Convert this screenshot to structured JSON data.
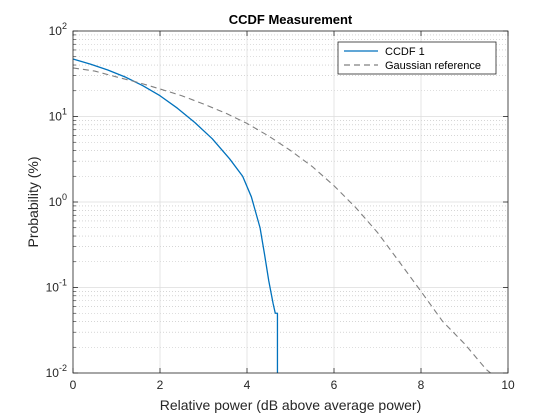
{
  "chart_data": {
    "type": "line",
    "title": "CCDF Measurement",
    "xlabel": "Relative power (dB above average power)",
    "ylabel": "Probability (%)",
    "xlim": [
      0,
      10
    ],
    "ylim": [
      0.01,
      100
    ],
    "yscale": "log",
    "grid": true,
    "minor_grid": true,
    "legend_position": "top-right",
    "x_ticks": [
      "0",
      "2",
      "4",
      "6",
      "8",
      "10"
    ],
    "y_ticks": [
      {
        "value": 0.01,
        "base": "10",
        "exp": "-2"
      },
      {
        "value": 0.1,
        "base": "10",
        "exp": "-1"
      },
      {
        "value": 1,
        "base": "10",
        "exp": "0"
      },
      {
        "value": 10,
        "base": "10",
        "exp": "1"
      },
      {
        "value": 100,
        "base": "10",
        "exp": "2"
      }
    ],
    "series": [
      {
        "name": "CCDF 1",
        "color": "#0072BD",
        "style": "solid",
        "x": [
          0,
          0.4,
          0.8,
          1.2,
          1.6,
          2.0,
          2.4,
          2.8,
          3.2,
          3.6,
          3.9,
          4.1,
          4.3,
          4.4,
          4.5,
          4.6,
          4.65,
          4.7,
          4.7
        ],
        "y": [
          47,
          41,
          35,
          29,
          23,
          17.5,
          12.5,
          8.5,
          5.5,
          3.2,
          2.0,
          1.15,
          0.5,
          0.25,
          0.12,
          0.065,
          0.05,
          0.05,
          0.01
        ]
      },
      {
        "name": "Gaussian reference",
        "color": "#808080",
        "style": "dashed",
        "x": [
          0,
          0.5,
          1,
          1.5,
          2,
          2.5,
          3,
          3.5,
          4,
          4.5,
          5,
          5.5,
          6,
          6.5,
          7,
          7.5,
          8,
          8.5,
          9,
          9.5,
          9.6
        ],
        "y": [
          37,
          34,
          29,
          25,
          21,
          17.5,
          14,
          11,
          8.3,
          5.9,
          4.0,
          2.6,
          1.55,
          0.86,
          0.44,
          0.2,
          0.09,
          0.04,
          0.022,
          0.011,
          0.01
        ]
      }
    ]
  }
}
